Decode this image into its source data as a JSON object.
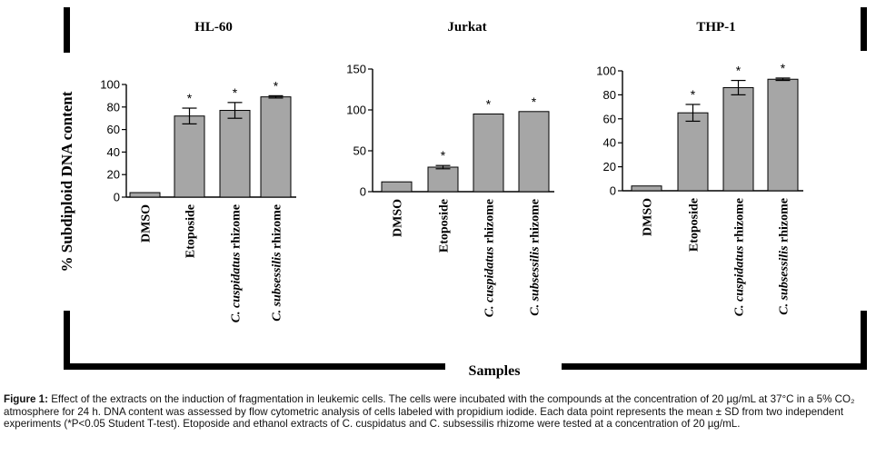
{
  "figure": {
    "ylabel": "% Subdiploid DNA content",
    "xlabel": "Samples",
    "caption": {
      "label": "Figure 1:",
      "text": "Effect of the extracts on the induction of fragmentation in leukemic cells. The cells were incubated with the compounds at the concentration of 20 µg/mL at 37°C in a 5% CO₂ atmosphere for 24 h. DNA content was assessed by flow cytometric analysis of cells labeled with propidium iodide. Each data point represents the mean ± SD from two independent experiments (*P<0.05 Student T-test). Etoposide and ethanol extracts of C. cuspidatus and C. subsessilis rhizome were tested at a concentration of 20 µg/mL."
    }
  },
  "chart_data": [
    {
      "type": "bar",
      "title": "HL-60",
      "categories": [
        "DMSO",
        "Etoposide",
        "C. cuspidatus rhizome",
        "C. subsessilis rhizome"
      ],
      "values": [
        4,
        72,
        77,
        89
      ],
      "errors": [
        0,
        7,
        7,
        1
      ],
      "significant": [
        "",
        "*",
        "*",
        "*"
      ],
      "ylim": [
        0,
        100
      ],
      "yticks": [
        0,
        20,
        40,
        60,
        80,
        100
      ]
    },
    {
      "type": "bar",
      "title": "Jurkat",
      "categories": [
        "DMSO",
        "Etoposide",
        "C. cuspidatus rhizome",
        "C. subsessilis rhizome"
      ],
      "values": [
        12,
        30,
        95,
        98
      ],
      "errors": [
        0,
        2,
        0,
        0
      ],
      "significant": [
        "",
        "*",
        "*",
        "*"
      ],
      "ylim": [
        0,
        150
      ],
      "yticks": [
        0,
        50,
        100,
        150
      ]
    },
    {
      "type": "bar",
      "title": "THP-1",
      "categories": [
        "DMSO",
        "Etoposide",
        "C. cuspidatus rhizome",
        "C. subsessilis rhizome"
      ],
      "values": [
        4,
        65,
        86,
        93
      ],
      "errors": [
        0,
        7,
        6,
        1
      ],
      "significant": [
        "",
        "*",
        "*",
        "*"
      ],
      "ylim": [
        0,
        100
      ],
      "yticks": [
        0,
        20,
        40,
        60,
        80,
        100
      ]
    }
  ]
}
